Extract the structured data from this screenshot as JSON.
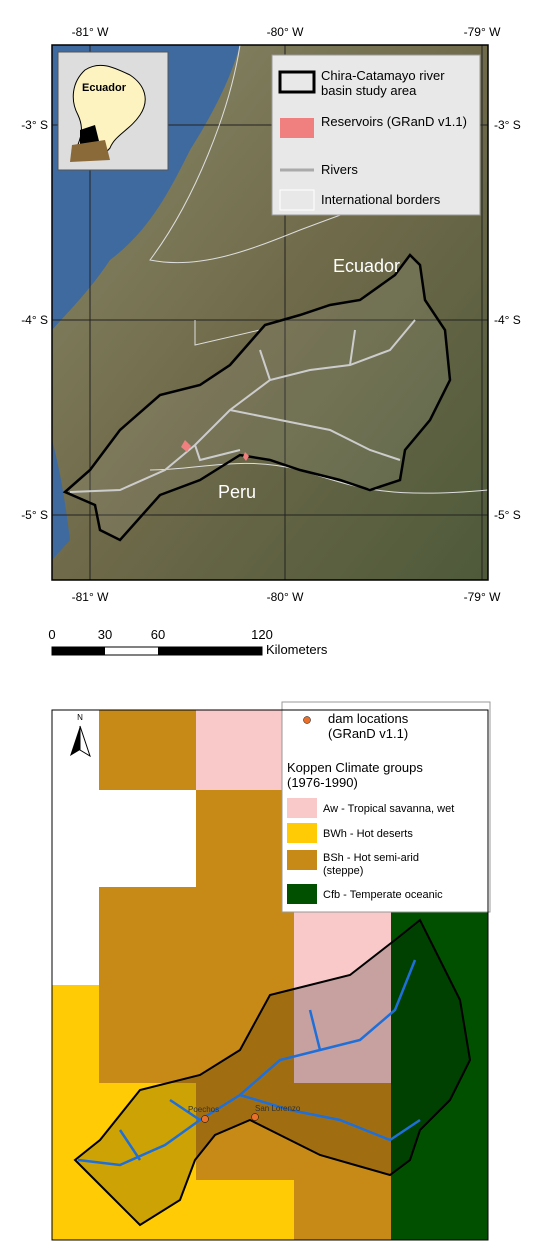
{
  "top_map": {
    "lon_labels": [
      "-81° W",
      "-80° W",
      "-79° W"
    ],
    "lat_labels": [
      "-3° S",
      "-4° S",
      "-5° S"
    ],
    "inset_label": "Ecuador",
    "legend": [
      "Chira-Catamayo river basin study area",
      "Reservoirs (GRanD v1.1)",
      "Rivers",
      "International borders"
    ],
    "place_labels": [
      "Ecuador",
      "Peru"
    ]
  },
  "scale_bar": {
    "labels": [
      "0",
      "30",
      "60",
      "120"
    ],
    "unit": "Kilometers"
  },
  "bottom_map": {
    "north": "N",
    "dam_legend": "dam locations (GRanD v1.1)",
    "climate_title": "Koppen Climate groups (1976-1990)",
    "climate_classes": [
      "Aw - Tropical savanna, wet",
      "BWh - Hot deserts",
      "BSh - Hot semi-arid (steppe)",
      "Cfb - Temperate oceanic"
    ],
    "dam_labels": [
      "Poechos",
      "San Lorenzo"
    ]
  }
}
